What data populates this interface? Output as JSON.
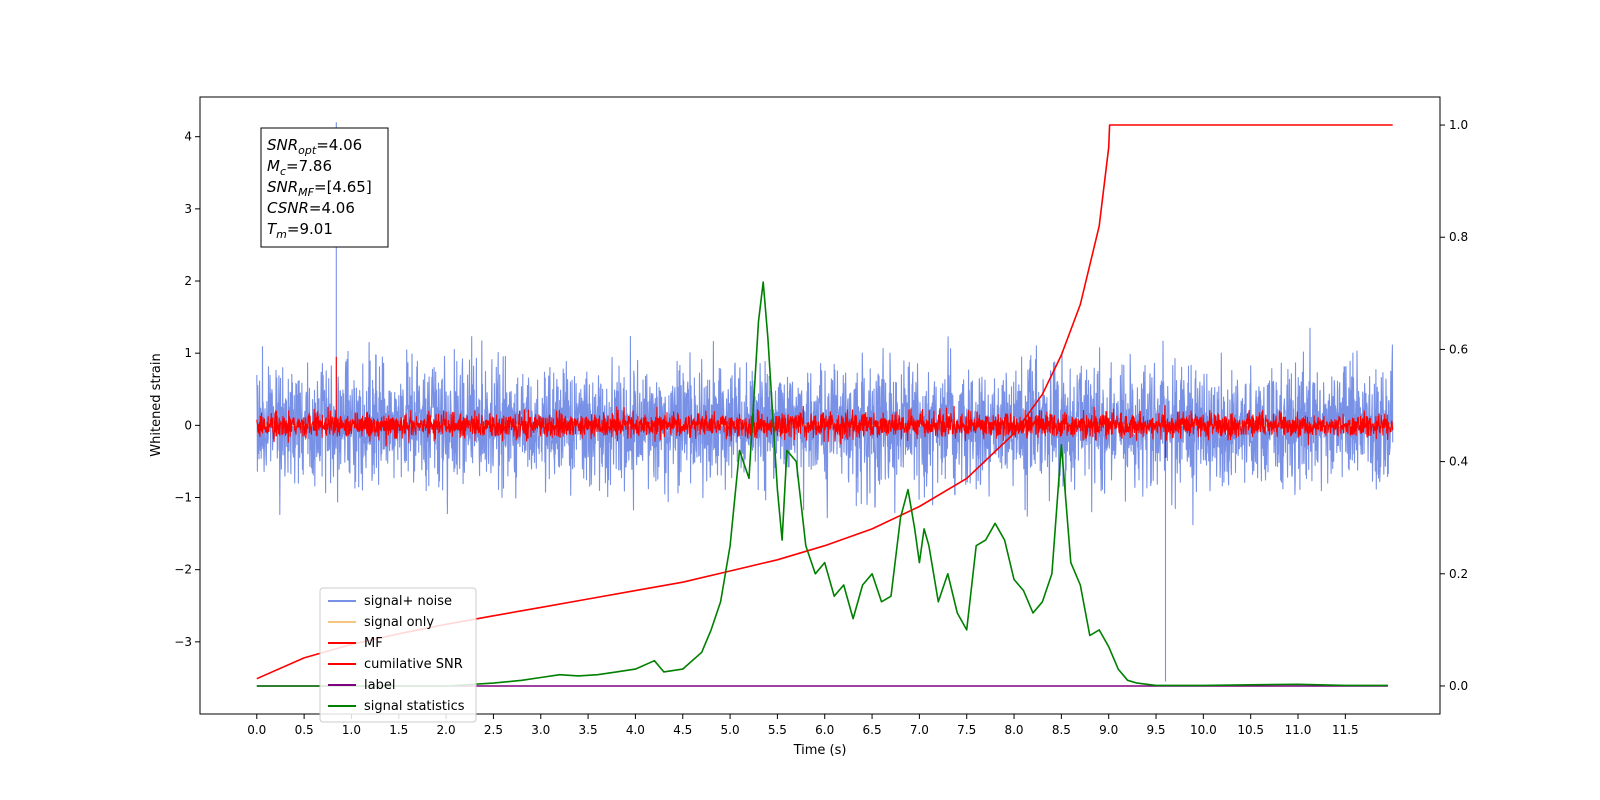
{
  "chart_data": {
    "type": "line",
    "title": "",
    "xlabel": "Time (s)",
    "ylabel": "Whitened strain",
    "y2label": "",
    "xlim": [
      -0.6,
      12.5
    ],
    "ylim": [
      -4.0,
      4.55
    ],
    "y2lim": [
      -0.05,
      1.05
    ],
    "x_ticks": [
      0.0,
      0.5,
      1.0,
      1.5,
      2.0,
      2.5,
      3.0,
      3.5,
      4.0,
      4.5,
      5.0,
      5.5,
      6.0,
      6.5,
      7.0,
      7.5,
      8.0,
      8.5,
      9.0,
      9.5,
      10.0,
      10.5,
      11.0,
      11.5
    ],
    "x_tick_labels": [
      "0.0",
      "0.5",
      "1.0",
      "1.5",
      "2.0",
      "2.5",
      "3.0",
      "3.5",
      "4.0",
      "4.5",
      "5.0",
      "5.5",
      "6.0",
      "6.5",
      "7.0",
      "7.5",
      "8.0",
      "8.5",
      "9.0",
      "9.5",
      "10.0",
      "10.5",
      "11.0",
      "11.5"
    ],
    "y_ticks": [
      -3,
      -2,
      -1,
      0,
      1,
      2,
      3,
      4
    ],
    "y_tick_labels": [
      "−3",
      "−2",
      "−1",
      "0",
      "1",
      "2",
      "3",
      "4"
    ],
    "y2_ticks": [
      0.0,
      0.2,
      0.4,
      0.6,
      0.8,
      1.0
    ],
    "y2_tick_labels": [
      "0.0",
      "0.2",
      "0.4",
      "0.6",
      "0.8",
      "1.0"
    ],
    "grid": false,
    "legend_position": "bottom-left",
    "annotation": {
      "lines": [
        {
          "symbol": "SNR",
          "sub": "opt",
          "value": "=4.06"
        },
        {
          "symbol": "M",
          "sub": "c",
          "value": "=7.86"
        },
        {
          "symbol": "SNR",
          "sub": "MF",
          "value": "=[4.65]"
        },
        {
          "symbol": "CSNR",
          "sub": "",
          "value": "=4.06"
        },
        {
          "symbol": "T",
          "sub": "m",
          "value": "=9.01"
        }
      ]
    },
    "series": [
      {
        "name": "signal+ noise",
        "axis": "left",
        "color": "#7891e6",
        "style": "noise",
        "x_range": [
          0.0,
          12.0
        ],
        "typical_range": [
          -1.7,
          1.7
        ],
        "min": -3.55,
        "max": 4.2
      },
      {
        "name": "signal only",
        "axis": "left",
        "color": "#f5c77e",
        "style": "line",
        "x": [
          0.0,
          12.0
        ],
        "values": [
          0.0,
          0.0
        ]
      },
      {
        "name": "MF",
        "axis": "left",
        "color": "#ff0000",
        "style": "noise",
        "x_range": [
          0.0,
          12.0
        ],
        "typical_range": [
          -0.35,
          0.35
        ],
        "min": -0.45,
        "max": 0.95
      },
      {
        "name": "cumilative SNR",
        "axis": "right",
        "color": "#ff0000",
        "style": "line",
        "x": [
          0.0,
          0.5,
          1.0,
          1.5,
          2.0,
          2.5,
          3.0,
          3.5,
          4.0,
          4.5,
          5.0,
          5.5,
          6.0,
          6.5,
          7.0,
          7.5,
          8.0,
          8.3,
          8.5,
          8.7,
          8.9,
          9.0,
          9.01,
          12.0
        ],
        "values": [
          0.013,
          0.05,
          0.074,
          0.093,
          0.11,
          0.125,
          0.14,
          0.155,
          0.17,
          0.185,
          0.205,
          0.225,
          0.25,
          0.28,
          0.32,
          0.37,
          0.45,
          0.52,
          0.59,
          0.68,
          0.82,
          0.96,
          1.0,
          1.0
        ]
      },
      {
        "name": "label",
        "axis": "right",
        "color": "#800080",
        "style": "line",
        "x": [
          0.0,
          11.95
        ],
        "values": [
          0.0,
          0.0
        ]
      },
      {
        "name": "signal statistics",
        "axis": "right",
        "color": "#008000",
        "style": "line",
        "x": [
          0.0,
          0.5,
          1.0,
          1.5,
          2.0,
          2.5,
          2.8,
          3.0,
          3.2,
          3.4,
          3.6,
          3.8,
          4.0,
          4.2,
          4.3,
          4.5,
          4.7,
          4.8,
          4.9,
          5.0,
          5.1,
          5.2,
          5.3,
          5.35,
          5.4,
          5.5,
          5.55,
          5.6,
          5.7,
          5.8,
          5.9,
          6.0,
          6.1,
          6.2,
          6.3,
          6.4,
          6.5,
          6.6,
          6.7,
          6.8,
          6.88,
          6.95,
          7.0,
          7.05,
          7.1,
          7.2,
          7.3,
          7.4,
          7.5,
          7.6,
          7.7,
          7.8,
          7.9,
          8.0,
          8.1,
          8.2,
          8.3,
          8.4,
          8.5,
          8.6,
          8.7,
          8.8,
          8.9,
          9.0,
          9.1,
          9.2,
          9.3,
          9.5,
          10.0,
          10.5,
          11.0,
          11.5,
          11.95
        ],
        "values": [
          0.0,
          0.0,
          0.0,
          0.0,
          0.0,
          0.005,
          0.01,
          0.015,
          0.02,
          0.018,
          0.02,
          0.025,
          0.03,
          0.045,
          0.025,
          0.03,
          0.06,
          0.1,
          0.15,
          0.25,
          0.42,
          0.37,
          0.65,
          0.72,
          0.62,
          0.35,
          0.26,
          0.42,
          0.4,
          0.25,
          0.2,
          0.22,
          0.16,
          0.18,
          0.12,
          0.18,
          0.2,
          0.15,
          0.16,
          0.3,
          0.35,
          0.28,
          0.22,
          0.28,
          0.25,
          0.15,
          0.2,
          0.13,
          0.1,
          0.25,
          0.26,
          0.29,
          0.26,
          0.19,
          0.17,
          0.13,
          0.15,
          0.2,
          0.43,
          0.22,
          0.18,
          0.09,
          0.1,
          0.07,
          0.03,
          0.01,
          0.005,
          0.001,
          0.001,
          0.002,
          0.003,
          0.001,
          0.001
        ]
      }
    ]
  }
}
